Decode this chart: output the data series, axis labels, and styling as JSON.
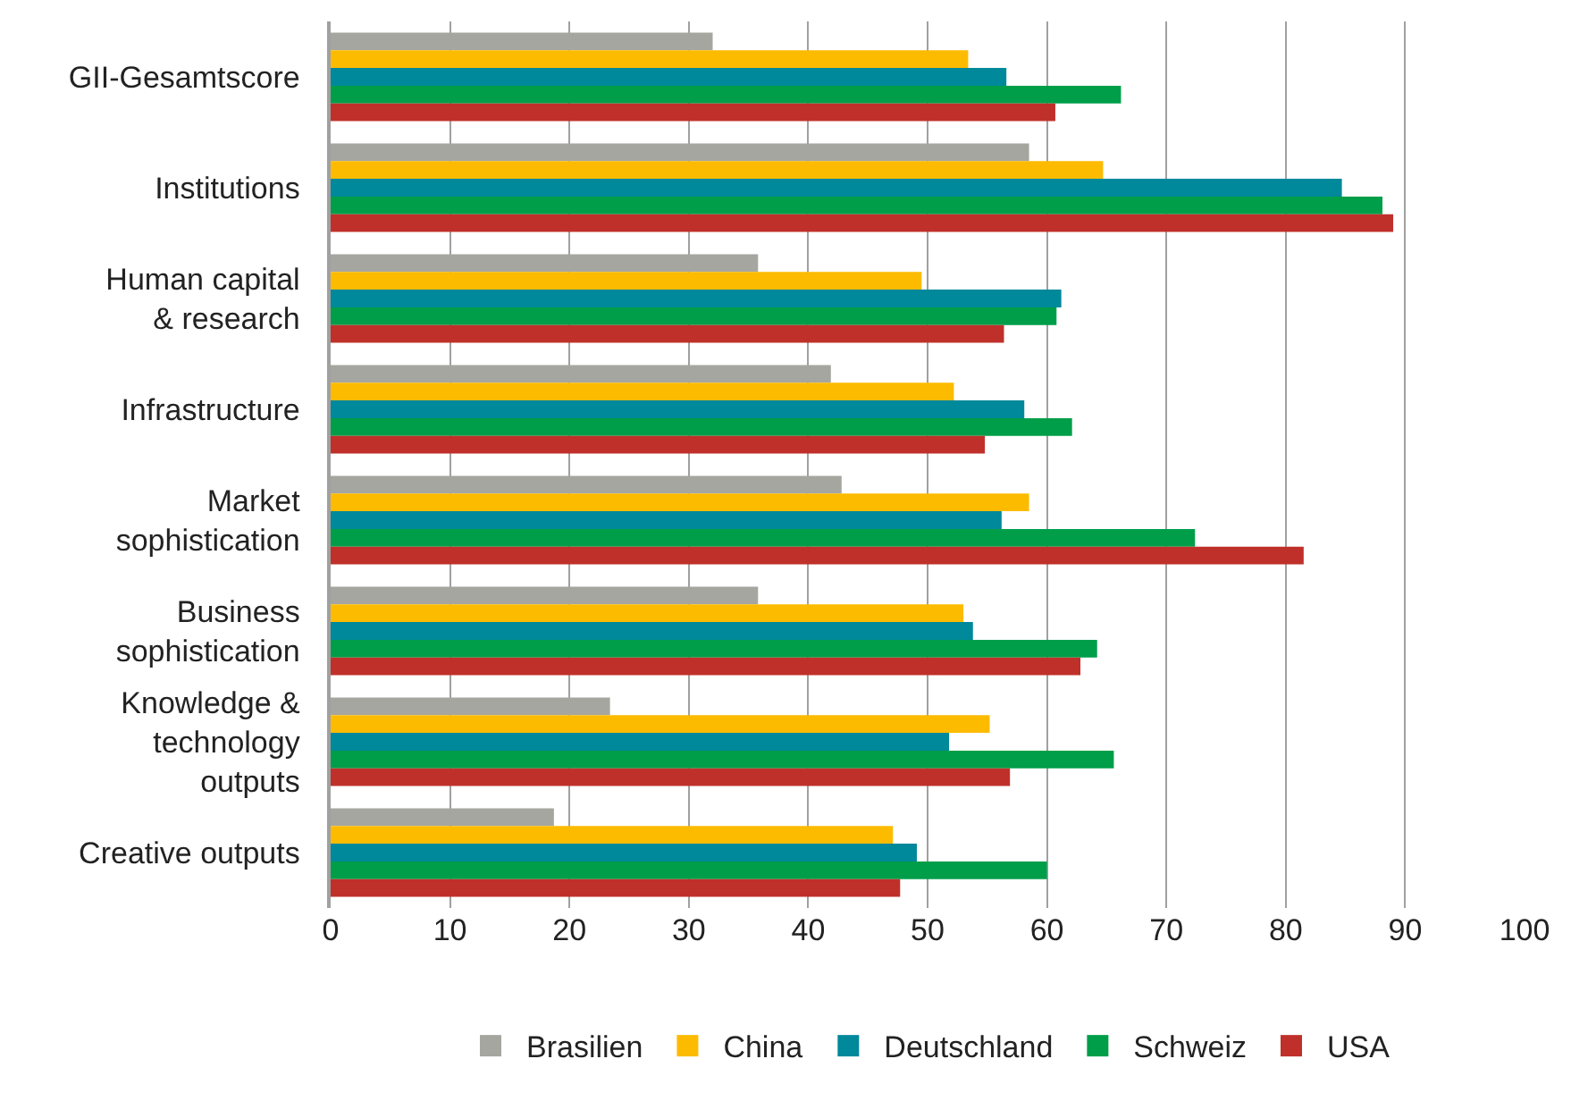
{
  "chart_data": {
    "type": "bar",
    "orientation": "horizontal",
    "categories": [
      "GII-Gesamtscore",
      "Institutions",
      "Human capital\n& research",
      "Infrastructure",
      "Market\nsophistication",
      "Business\nsophistication",
      "Knowledge &\ntechnology\noutputs",
      "Creative outputs"
    ],
    "series": [
      {
        "name": "Brasilien",
        "color": "#a6a6a0",
        "values": [
          32.0,
          58.5,
          35.8,
          41.9,
          42.8,
          35.8,
          23.4,
          18.7
        ]
      },
      {
        "name": "China",
        "color": "#fdbb00",
        "values": [
          53.4,
          64.7,
          49.5,
          52.2,
          58.5,
          53.0,
          55.2,
          47.1
        ]
      },
      {
        "name": "Deutschland",
        "color": "#00889b",
        "values": [
          56.6,
          84.7,
          61.2,
          58.1,
          56.2,
          53.8,
          51.8,
          49.1
        ]
      },
      {
        "name": "Schweiz",
        "color": "#009e49",
        "values": [
          66.2,
          88.1,
          60.8,
          62.1,
          72.4,
          64.2,
          65.6,
          60.0
        ]
      },
      {
        "name": "USA",
        "color": "#c0302a",
        "values": [
          60.7,
          89.0,
          56.4,
          54.8,
          81.5,
          62.8,
          56.9,
          47.7
        ]
      }
    ],
    "xlim": [
      0,
      100
    ],
    "xticks": [
      0,
      10,
      20,
      30,
      40,
      50,
      60,
      70,
      80,
      90,
      100
    ],
    "grid": "x",
    "legend": "bottom"
  }
}
